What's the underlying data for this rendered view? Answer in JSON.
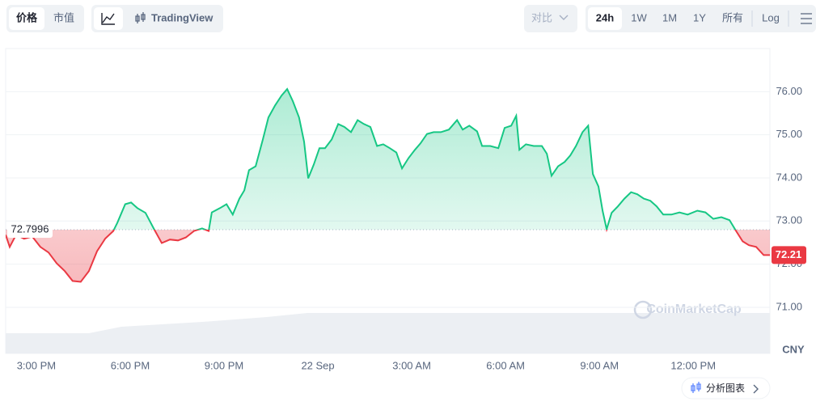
{
  "toolbar": {
    "price": "价格",
    "market_cap": "市值",
    "tradingview": "TradingView",
    "compare": "对比",
    "ranges": [
      "24h",
      "1W",
      "1M",
      "1Y",
      "所有"
    ],
    "log": "Log"
  },
  "chart_data": {
    "type": "line",
    "x": [
      14.02,
      14.15,
      14.35,
      14.61,
      14.87,
      15.13,
      15.39,
      15.65,
      15.91,
      16.16,
      16.42,
      16.68,
      16.94,
      17.2,
      17.46,
      17.59,
      17.84,
      18.03,
      18.23,
      18.49,
      18.75,
      19.01,
      19.27,
      19.53,
      19.78,
      20.04,
      20.3,
      20.51,
      20.61,
      20.87,
      21.08,
      21.28,
      21.49,
      21.65,
      21.8,
      22.01,
      22.24,
      22.42,
      22.63,
      22.84,
      23.02,
      23.2,
      23.4,
      23.56,
      23.69,
      23.87,
      24.05,
      24.23,
      24.44,
      24.65,
      24.85,
      25.06,
      25.27,
      25.47,
      25.68,
      25.89,
      26.09,
      26.3,
      26.51,
      26.69,
      26.9,
      27.1,
      27.28,
      27.49,
      27.7,
      27.93,
      28.19,
      28.45,
      28.63,
      28.84,
      29.09,
      29.25,
      29.51,
      29.77,
      29.97,
      30.18,
      30.34,
      30.44,
      30.65,
      30.9,
      31.16,
      31.32,
      31.47,
      31.68,
      31.89,
      32.07,
      32.25,
      32.46,
      32.64,
      32.79,
      32.97,
      33.1,
      33.23,
      33.39,
      33.59,
      33.8,
      34.01,
      34.21,
      34.42,
      34.63,
      34.83,
      35.04,
      35.3,
      35.56,
      35.82,
      36.13,
      36.39,
      36.64,
      36.9,
      37.16,
      37.37,
      37.58,
      37.78,
      38.01,
      38.25,
      38.45
    ],
    "series": [
      {
        "color": "#16c784",
        "values": [
          72.68,
          72.4,
          72.68,
          72.59,
          72.64,
          72.4,
          72.27,
          72.02,
          71.84,
          71.61,
          71.59,
          71.84,
          72.3,
          72.59,
          72.77,
          72.96,
          73.39,
          73.43,
          73.3,
          73.19,
          72.83,
          72.49,
          72.57,
          72.55,
          72.62,
          72.77,
          72.83,
          72.77,
          73.2,
          73.3,
          73.39,
          73.15,
          73.52,
          73.71,
          74.18,
          74.27,
          74.89,
          75.4,
          75.68,
          75.91,
          76.06,
          75.78,
          75.4,
          74.84,
          73.99,
          74.31,
          74.69,
          74.69,
          74.89,
          75.25,
          75.18,
          75.06,
          75.34,
          75.25,
          75.18,
          74.74,
          74.78,
          74.69,
          74.59,
          74.22,
          74.46,
          74.65,
          74.8,
          75.02,
          75.06,
          75.06,
          75.12,
          75.34,
          75.12,
          75.21,
          75.08,
          74.74,
          74.74,
          74.69,
          75.16,
          75.21,
          75.44,
          74.65,
          74.78,
          74.74,
          74.74,
          74.56,
          74.05,
          74.27,
          74.37,
          74.52,
          74.74,
          75.06,
          75.21,
          74.09,
          73.8,
          73.24,
          72.81,
          73.19,
          73.34,
          73.52,
          73.67,
          73.62,
          73.52,
          73.47,
          73.34,
          73.15,
          73.15,
          73.2,
          73.15,
          73.24,
          73.2,
          73.05,
          73.09,
          73.02,
          72.77,
          72.53,
          72.44,
          72.4,
          72.21,
          72.21
        ]
      }
    ],
    "down_color": "#ea3943",
    "baseline": 72.7996,
    "xlim": [
      14.02,
      38.45
    ],
    "xticks": [
      {
        "value": 15,
        "label": "3:00 PM"
      },
      {
        "value": 18,
        "label": "6:00 PM"
      },
      {
        "value": 21,
        "label": "9:00 PM"
      },
      {
        "value": 24,
        "label": "22 Sep"
      },
      {
        "value": 27,
        "label": "3:00 AM"
      },
      {
        "value": 30,
        "label": "6:00 AM"
      },
      {
        "value": 33,
        "label": "9:00 AM"
      },
      {
        "value": 36,
        "label": "12:00 PM"
      }
    ],
    "ylim": [
      69.93,
      77.0
    ],
    "yticks": [
      {
        "value": 71,
        "label": "71.00"
      },
      {
        "value": 72,
        "label": "72.00"
      },
      {
        "value": 73,
        "label": "73.00"
      },
      {
        "value": 74,
        "label": "74.00"
      },
      {
        "value": 75,
        "label": "75.00"
      },
      {
        "value": 76,
        "label": "76.00"
      }
    ],
    "grid": true,
    "currency": "CNY",
    "watermark": "CoinMarketCap"
  },
  "footer": {
    "analysis": "分析图表"
  }
}
